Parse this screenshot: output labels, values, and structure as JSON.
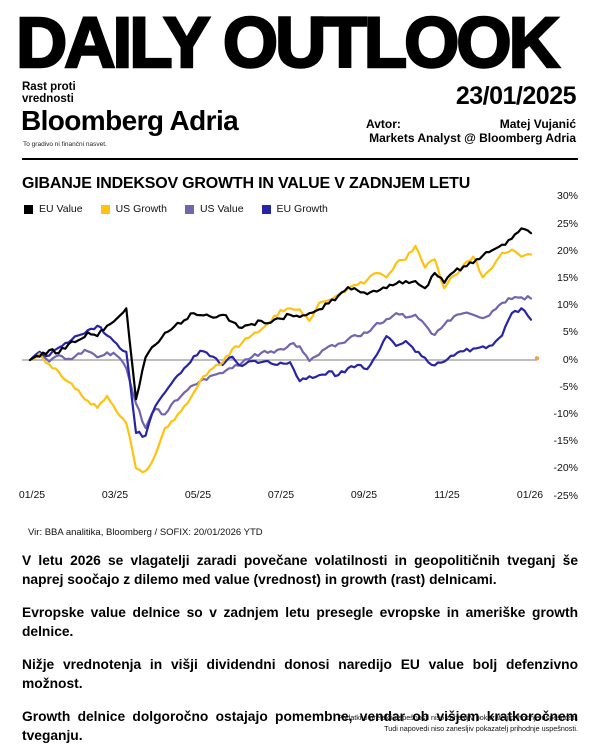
{
  "header": {
    "title": "DAILY OUTLOOK",
    "topic": [
      "Rast proti",
      "vrednosti"
    ],
    "date": "23/01/2025",
    "brand": "Bloomberg Adria",
    "author_label": "Avtor:",
    "author_name": "Matej Vujanić",
    "author_role": "Markets Analyst @ Bloomberg Adria",
    "disclaimer": "To gradivo ni finančni nasvet."
  },
  "chart": {
    "title": "GIBANJE INDEKSOV GROWTH IN VALUE V ZADNJEM LETU",
    "source": "Vir: BBA analitika, Bloomberg / SOFIX: 20/01/2026 YTD"
  },
  "chart_data": {
    "type": "line",
    "title": "GIBANJE INDEKSOV GROWTH IN VALUE V ZADNJEM LETU",
    "x_unit": "weeks from 01/2025 to 01/2026",
    "x_tick_labels": [
      "01/25",
      "03/25",
      "05/25",
      "07/25",
      "09/25",
      "11/25",
      "01/26"
    ],
    "y_ticks": [
      30,
      25,
      20,
      15,
      10,
      5,
      0,
      -5,
      -10,
      -15,
      -20,
      -25
    ],
    "y_unit": "%",
    "ylim": [
      -25,
      30
    ],
    "grid": "zero-line-only",
    "legend_position": "top-left",
    "series": [
      {
        "name": "EU Value",
        "color": "#000000",
        "values": [
          0,
          0.6,
          1.8,
          1.3,
          2.9,
          3.6,
          5.1,
          4.4,
          6.3,
          7.6,
          9.5,
          -7.2,
          0.5,
          2.8,
          5.0,
          6.2,
          7.3,
          8.6,
          8.2,
          7.8,
          8.3,
          7.0,
          5.9,
          6.6,
          7.2,
          6.9,
          7.6,
          8.3,
          7.9,
          8.6,
          9.3,
          10.4,
          11.8,
          13.4,
          12.8,
          12.1,
          12.6,
          13.2,
          14.0,
          14.5,
          14.5,
          13.2,
          16.0,
          14.2,
          16.2,
          17.2,
          17.8,
          19.2,
          20.2,
          21.2,
          22.3,
          24.2,
          23.3
        ]
      },
      {
        "name": "US Growth",
        "color": "#FFC20E",
        "values": [
          0,
          1.2,
          -0.8,
          -2.2,
          -4.0,
          -5.5,
          -7.5,
          -8.8,
          -6.6,
          -9.5,
          -11.6,
          -19.9,
          -20.4,
          -17.4,
          -12.5,
          -11.0,
          -8.5,
          -6.0,
          -3.0,
          -1.5,
          -0.5,
          2.0,
          3.1,
          4.5,
          5.6,
          7.0,
          9.2,
          9.5,
          9.3,
          7.2,
          10.5,
          11.0,
          12.0,
          13.2,
          13.8,
          14.7,
          16.0,
          15.2,
          17.8,
          18.5,
          21.0,
          17.0,
          18.5,
          13.2,
          15.5,
          17.5,
          19.0,
          15.2,
          17.0,
          19.7,
          20.3,
          19.0,
          19.4
        ]
      },
      {
        "name": "US Value",
        "color": "#6F66AE",
        "values": [
          0,
          0.8,
          -0.3,
          0.9,
          0.2,
          1.2,
          1.6,
          0.5,
          1.4,
          0.8,
          -1.5,
          -8.0,
          -12.5,
          -9.0,
          -10.0,
          -7.5,
          -6.0,
          -4.6,
          -3.5,
          -2.8,
          -2.4,
          -1.5,
          -0.5,
          0.5,
          1.3,
          1.6,
          2.0,
          2.9,
          2.5,
          -0.2,
          1.0,
          2.5,
          3.0,
          3.8,
          4.4,
          5.0,
          6.8,
          7.5,
          8.6,
          7.8,
          8.3,
          6.5,
          4.6,
          6.5,
          8.0,
          8.6,
          8.3,
          7.7,
          9.0,
          10.5,
          11.2,
          11.5,
          11.3
        ]
      },
      {
        "name": "EU Growth",
        "color": "#2824A6",
        "values": [
          0,
          1.5,
          0.8,
          2.3,
          3.2,
          4.5,
          5.5,
          6.3,
          4.5,
          3.0,
          1.5,
          -13.4,
          -13.9,
          -8.5,
          -6.0,
          -3.5,
          -1.5,
          0.7,
          1.6,
          0.6,
          -0.9,
          0.6,
          -1.1,
          -0.2,
          -0.4,
          -0.6,
          -0.5,
          -0.4,
          -3.9,
          -3.0,
          -2.8,
          -2.1,
          -2.8,
          -1.5,
          -0.9,
          -1.7,
          1.0,
          4.4,
          2.6,
          3.5,
          1.5,
          0.4,
          -1.0,
          -0.3,
          0.8,
          1.6,
          2.1,
          2.5,
          2.7,
          4.5,
          8.6,
          9.5,
          7.4
        ]
      }
    ],
    "end_marker": {
      "name": "SOFIX YTD",
      "value": 0.3,
      "color": "#F0A24B"
    }
  },
  "body": {
    "paragraphs": [
      "V letu 2026 se vlagatelji zaradi povečane volatilnosti in geopolitičnih tveganj še naprej soočajo z dilemo med value (vrednost) in growth (rast) delnicami.",
      "Evropske value delnice so v zadnjem letu presegle evropske in ameriške growth delnice.",
      "Nižje vrednotenja in višji dividendni donosi naredijo EU value bolj defenzivno možnost.",
      "Growth delnice dolgoročno ostajajo pomembne, vendar ob višjem kratkoročnem tveganju."
    ]
  },
  "footer": {
    "lines": [
      "Podatki o pretekli uspešnosti niso zanesljiv pokazatelj prihodnje uspešnosti.",
      "Tudi napovedi niso zanesljiv pokazatelj prihodnje uspešnosti."
    ]
  }
}
